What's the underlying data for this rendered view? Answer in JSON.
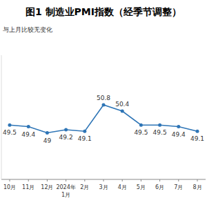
{
  "chart_data": {
    "type": "line",
    "title": "图1 制造业PMI指数（经季节调整）",
    "annotation": "与上月比较无变化",
    "categories": [
      "10月",
      "11月",
      "12月",
      "2024年\n1月",
      "2月",
      "3月",
      "4月",
      "5月",
      "6月",
      "7月",
      "8月"
    ],
    "values": [
      49.5,
      49.4,
      49.0,
      49.2,
      49.1,
      50.8,
      50.4,
      49.5,
      49.5,
      49.4,
      49.1
    ],
    "color": "#2e75b6",
    "marker": "circle",
    "ylim": [
      46,
      54
    ],
    "yticks": [],
    "tick_labels": "x",
    "data_labels": true
  }
}
